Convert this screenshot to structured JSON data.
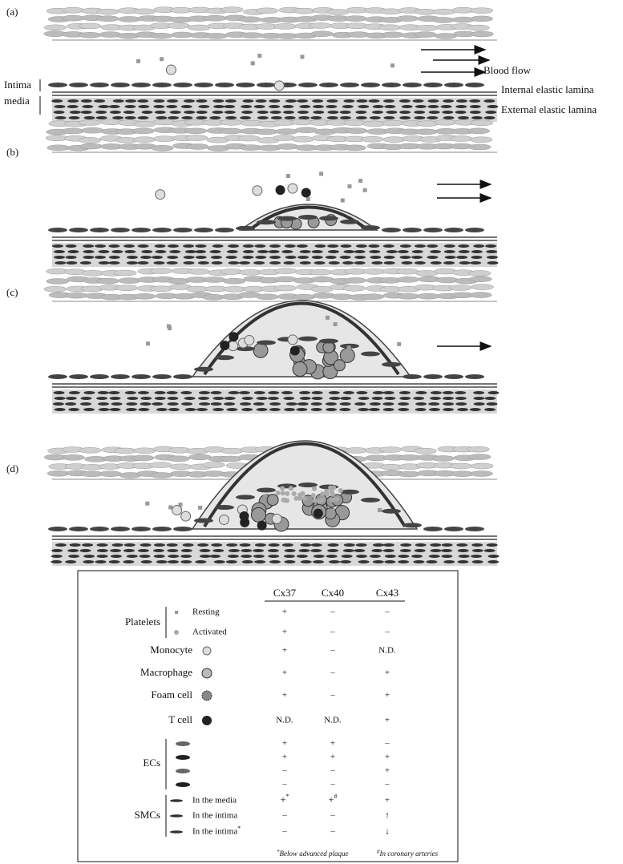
{
  "panels": [
    {
      "label": "(a)"
    },
    {
      "label": "(b)"
    },
    {
      "label": "(c)"
    },
    {
      "label": "(d)"
    }
  ],
  "annotations": {
    "blood_flow": "Blood flow",
    "intima": "Intima",
    "media": "media",
    "internal_lamina": "Internal elastic lamina",
    "external_lamina": "External elastic lamina"
  },
  "legend": {
    "headers": [
      "Cx37",
      "Cx40",
      "Cx43"
    ],
    "rows": [
      {
        "group": "Platelets",
        "label": "Resting",
        "cells": [
          "+",
          "–",
          "–"
        ]
      },
      {
        "label": "Activated",
        "cells": [
          "+",
          "–",
          "–"
        ]
      },
      {
        "group": "Monocyte",
        "cells": [
          "+",
          "–",
          "N.D."
        ]
      },
      {
        "group": "Macrophage",
        "cells": [
          "+",
          "–",
          "+"
        ]
      },
      {
        "group": "Foam cell",
        "cells": [
          "+",
          "–",
          "+"
        ]
      },
      {
        "group": "T cell",
        "cells": [
          "N.D.",
          "N.D.",
          "+"
        ]
      },
      {
        "group": "ECs",
        "cells": [
          "+",
          "+",
          "–"
        ]
      },
      {
        "cells": [
          "+",
          "+",
          "+"
        ]
      },
      {
        "cells": [
          "–",
          "–",
          "+"
        ]
      },
      {
        "cells": [
          "–",
          "–",
          "–"
        ]
      },
      {
        "group": "SMCs",
        "label": "In the media",
        "cells": [
          {
            "text": "+",
            "sup": "*"
          },
          {
            "text": "+",
            "sup": "#"
          },
          "+"
        ]
      },
      {
        "label": "In the intima",
        "cells": [
          "–",
          "–",
          "↑"
        ]
      },
      {
        "label": "In the intima",
        "label_sup": "*",
        "cells": [
          "–",
          "–",
          "↓"
        ]
      }
    ],
    "footnotes": [
      {
        "sup": "*",
        "text": "Below advanced plaque"
      },
      {
        "sup": "#",
        "text": "In coronary arteries"
      }
    ]
  }
}
